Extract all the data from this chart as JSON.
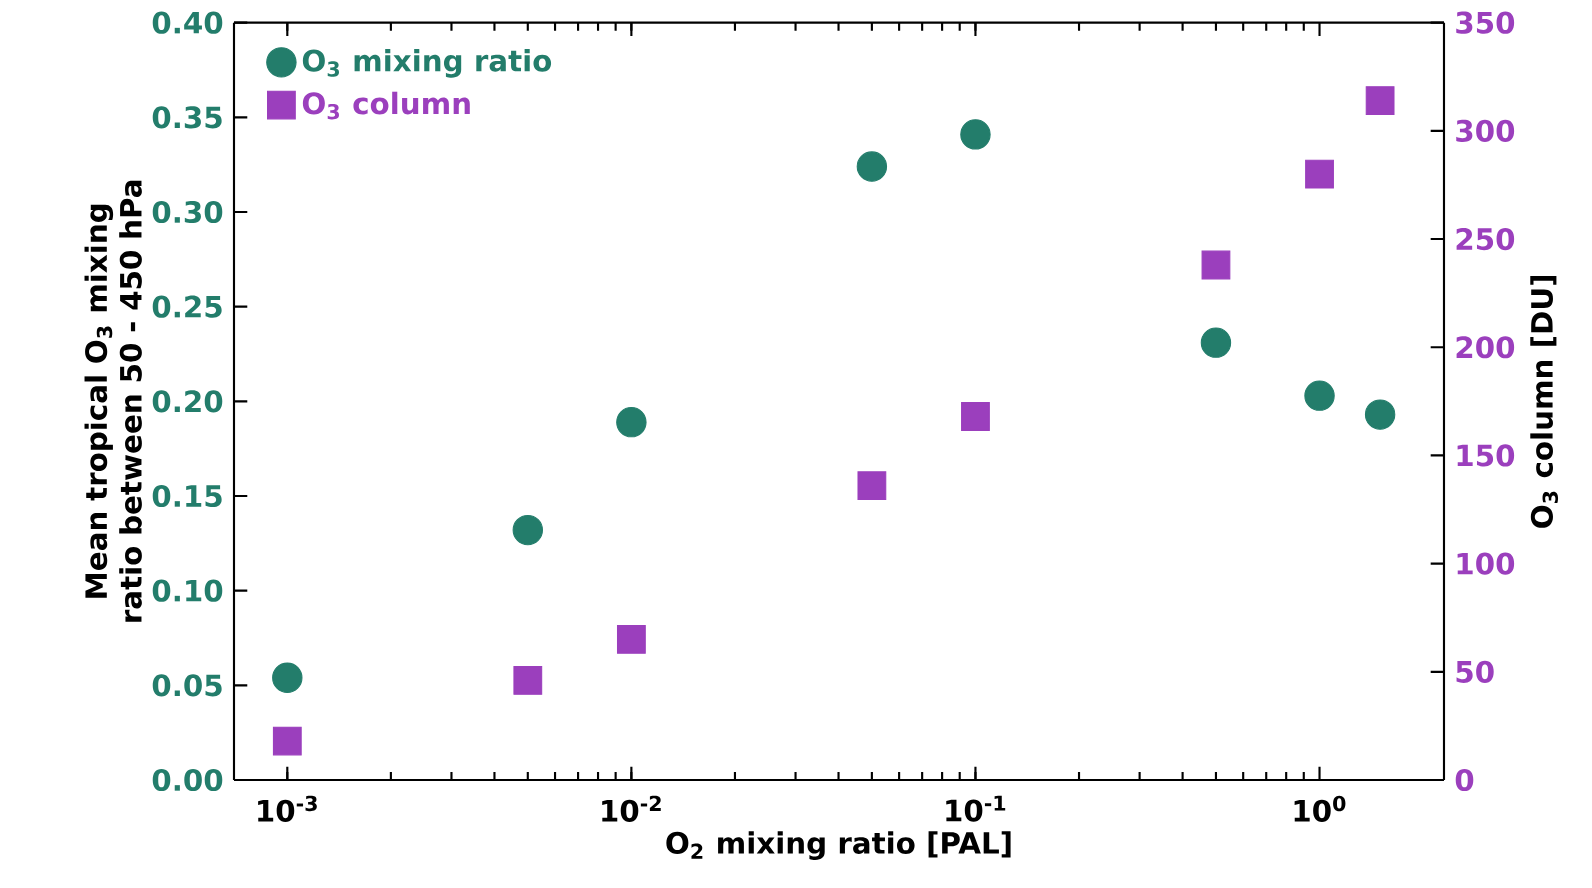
{
  "chart_data": {
    "type": "scatter",
    "xlabel": "O$_{2}$ mixing ratio [PAL]",
    "ylabel": "Mean tropical O$_{3}$ mixing ratio between 50 - 450 hPa",
    "y2label": "O$_{3}$ column [DU]",
    "x": [
      0.001,
      0.005,
      0.01,
      0.05,
      0.1,
      0.5,
      1,
      1.5
    ],
    "series": [
      {
        "name": "O$_{3}$ mixing ratio",
        "color": "#237d6b",
        "marker": "circle",
        "values": [
          0.054,
          0.132,
          0.189,
          0.324,
          0.341,
          0.231,
          0.203,
          0.193
        ]
      },
      {
        "name": "O$_{3}$ column",
        "color": "#9b3fbd",
        "marker": "square",
        "axis": "y2",
        "values": [
          18,
          46,
          65,
          136,
          168,
          238,
          280,
          314
        ]
      }
    ],
    "log": "x",
    "xlim": [
      0.0007,
      2.3
    ],
    "xticks": [
      {
        "value": 0.001,
        "label": "10$^{-3}$"
      },
      {
        "value": 0.01,
        "label": "10$^{-2}$"
      },
      {
        "value": 0.1,
        "label": "10$^{-1}$"
      },
      {
        "value": 1,
        "label": "10$^{0}$"
      }
    ],
    "ylim": [
      0,
      0.4
    ],
    "yticks": [
      {
        "value": 0,
        "label": "0.00"
      },
      {
        "value": 0.05,
        "label": "0.05"
      },
      {
        "value": 0.1,
        "label": "0.10"
      },
      {
        "value": 0.15,
        "label": "0.15"
      },
      {
        "value": 0.2,
        "label": "0.20"
      },
      {
        "value": 0.25,
        "label": "0.25"
      },
      {
        "value": 0.3,
        "label": "0.30"
      },
      {
        "value": 0.35,
        "label": "0.35"
      },
      {
        "value": 0.4,
        "label": "0.40"
      }
    ],
    "y2lim": [
      0,
      350
    ],
    "y2ticks": [
      0,
      50,
      100,
      150,
      200,
      250,
      300,
      350
    ],
    "legend": "top left",
    "grid": false
  }
}
